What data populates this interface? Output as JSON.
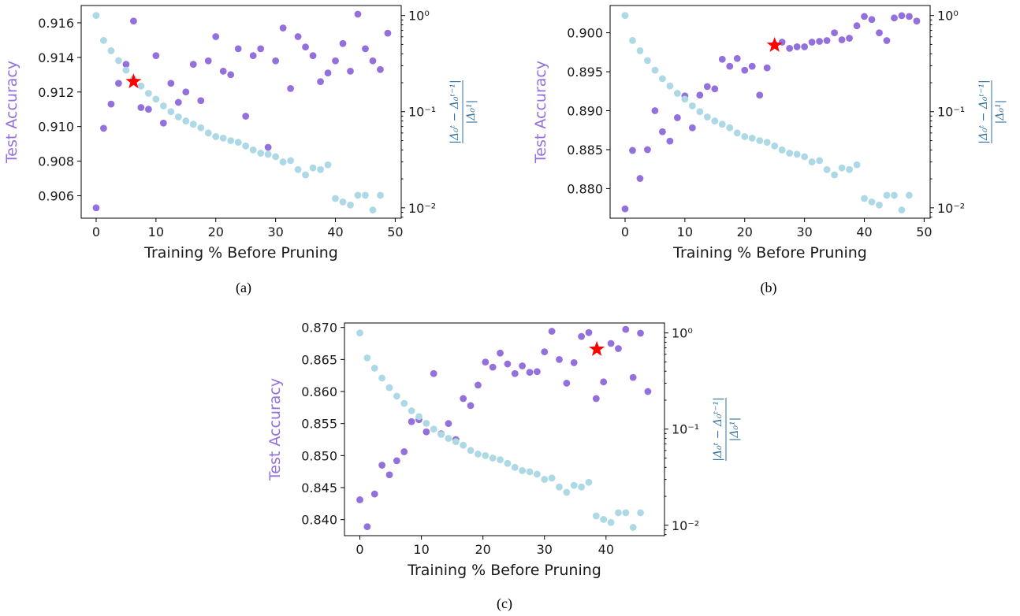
{
  "colors": {
    "accuracy": "#9370db",
    "delta": "#add8e6",
    "right_axis_text": "#2e6f9e",
    "star": "#ff0000"
  },
  "chart_data": [
    {
      "type": "scatter",
      "caption": "(a)",
      "xlabel": "Training % Before Pruning",
      "ylabel": "Test Accuracy",
      "ylabel_right": "|Δ₀ᵗ − Δ₀ᵗ⁻¹| / |Δ₀¹|",
      "xlim": [
        -2.5,
        51
      ],
      "ylim": [
        0.9047,
        0.917
      ],
      "y2lim": [
        0.0078,
        1.27
      ],
      "y2scale": "log",
      "xticks": [
        "0",
        "10",
        "20",
        "30",
        "40",
        "50"
      ],
      "yticks": [
        "0.906",
        "0.908",
        "0.910",
        "0.912",
        "0.914",
        "0.916"
      ],
      "y2ticks": [
        "10⁻²",
        "10⁻¹",
        "10⁰"
      ],
      "grid": false,
      "series": [
        {
          "key": "accuracy",
          "x": [
            0,
            1.25,
            2.5,
            3.75,
            5,
            6.25,
            7.5,
            8.75,
            10,
            11.25,
            12.5,
            13.75,
            15,
            16.25,
            17.5,
            18.75,
            20,
            21.25,
            22.5,
            23.75,
            25,
            26.25,
            27.5,
            28.75,
            30,
            31.25,
            32.5,
            33.75,
            35,
            36.25,
            37.5,
            38.75,
            40,
            41.25,
            42.5,
            43.75,
            45,
            46.25,
            47.5,
            48.75
          ],
          "y": [
            0.9053,
            0.9099,
            0.9113,
            0.9125,
            0.9136,
            0.9161,
            0.9111,
            0.911,
            0.9141,
            0.9102,
            0.9125,
            0.9114,
            0.912,
            0.9136,
            0.9115,
            0.9138,
            0.9152,
            0.9132,
            0.913,
            0.9145,
            0.9106,
            0.9141,
            0.9145,
            0.9088,
            0.9138,
            0.9157,
            0.9122,
            0.9152,
            0.9146,
            0.9141,
            0.9126,
            0.9131,
            0.9138,
            0.9148,
            0.9132,
            0.9165,
            0.9145,
            0.9138,
            0.9133,
            0.9154
          ]
        },
        {
          "key": "delta",
          "x": [
            0,
            1.25,
            2.5,
            3.75,
            5,
            6.25,
            7.5,
            8.75,
            10,
            11.25,
            12.5,
            13.75,
            15,
            16.25,
            17.5,
            18.75,
            20,
            21.25,
            22.5,
            23.75,
            25,
            26.25,
            27.5,
            28.75,
            30,
            31.25,
            32.5,
            33.75,
            35,
            36.25,
            37.5,
            38.75,
            40,
            41.25,
            42.5,
            43.75,
            45,
            46.25,
            47.5
          ],
          "y": [
            1.0,
            0.55,
            0.43,
            0.34,
            0.27,
            0.22,
            0.185,
            0.155,
            0.135,
            0.115,
            0.1,
            0.088,
            0.08,
            0.074,
            0.068,
            0.06,
            0.055,
            0.053,
            0.05,
            0.048,
            0.044,
            0.04,
            0.037,
            0.036,
            0.034,
            0.03,
            0.031,
            0.025,
            0.022,
            0.026,
            0.025,
            0.028,
            0.0125,
            0.0115,
            0.0107,
            0.0135,
            0.0135,
            0.0095,
            0.0135
          ]
        }
      ],
      "star": {
        "x": 6.25,
        "y": 0.9126
      }
    },
    {
      "type": "scatter",
      "caption": "(b)",
      "xlabel": "Training % Before Pruning",
      "ylabel": "Test Accuracy",
      "ylabel_right": "|Δ₀ᵗ − Δ₀ᵗ⁻¹| / |Δ₀¹|",
      "xlim": [
        -2.5,
        51
      ],
      "ylim": [
        0.8762,
        0.9035
      ],
      "y2lim": [
        0.0078,
        1.27
      ],
      "y2scale": "log",
      "xticks": [
        "0",
        "10",
        "20",
        "30",
        "40",
        "50"
      ],
      "yticks": [
        "0.880",
        "0.885",
        "0.890",
        "0.895",
        "0.900"
      ],
      "y2ticks": [
        "10⁻²",
        "10⁻¹",
        "10⁰"
      ],
      "grid": false,
      "series": [
        {
          "key": "accuracy",
          "x": [
            0,
            1.25,
            2.5,
            3.75,
            5,
            6.25,
            7.5,
            8.75,
            10,
            11.25,
            12.5,
            13.75,
            15,
            16.25,
            17.5,
            18.75,
            20,
            21.25,
            22.5,
            23.75,
            25,
            26.25,
            27.5,
            28.75,
            30,
            31.25,
            32.5,
            33.75,
            35,
            36.25,
            37.5,
            38.75,
            40,
            41.25,
            42.5,
            43.75,
            45,
            46.25,
            47.5,
            48.75
          ],
          "y": [
            0.8774,
            0.8849,
            0.8813,
            0.885,
            0.89,
            0.8873,
            0.8861,
            0.8891,
            0.8919,
            0.8878,
            0.892,
            0.8931,
            0.8928,
            0.8966,
            0.8957,
            0.8967,
            0.8952,
            0.8957,
            0.892,
            0.8955,
            0.8985,
            0.8988,
            0.898,
            0.8982,
            0.8982,
            0.8988,
            0.8989,
            0.899,
            0.9,
            0.8991,
            0.8993,
            0.9009,
            0.9021,
            0.9017,
            0.9,
            0.899,
            0.9019,
            0.9022,
            0.9021,
            0.9015
          ]
        },
        {
          "key": "delta",
          "x": [
            0,
            1.25,
            2.5,
            3.75,
            5,
            6.25,
            7.5,
            8.75,
            10,
            11.25,
            12.5,
            13.75,
            15,
            16.25,
            17.5,
            18.75,
            20,
            21.25,
            22.5,
            23.75,
            25,
            26.25,
            27.5,
            28.75,
            30,
            31.25,
            32.5,
            33.75,
            35,
            36.25,
            37.5,
            38.75,
            40,
            41.25,
            42.5,
            43.75,
            45,
            46.25,
            47.5
          ],
          "y": [
            1.0,
            0.55,
            0.43,
            0.34,
            0.27,
            0.22,
            0.185,
            0.155,
            0.135,
            0.115,
            0.1,
            0.088,
            0.08,
            0.074,
            0.068,
            0.06,
            0.055,
            0.053,
            0.05,
            0.048,
            0.044,
            0.04,
            0.037,
            0.036,
            0.034,
            0.03,
            0.031,
            0.025,
            0.022,
            0.026,
            0.025,
            0.028,
            0.0125,
            0.0115,
            0.0107,
            0.0135,
            0.0135,
            0.0095,
            0.0135
          ]
        }
      ],
      "star": {
        "x": 25,
        "y": 0.8984
      }
    },
    {
      "type": "scatter",
      "caption": "(c)",
      "xlabel": "Training % Before Pruning",
      "ylabel": "Test Accuracy",
      "ylabel_right": "|Δ₀ᵗ − Δ₀ᵗ⁻¹| / |Δ₀¹|",
      "xlim": [
        -2.5,
        49.5
      ],
      "ylim": [
        0.8375,
        0.8707
      ],
      "y2lim": [
        0.0078,
        1.27
      ],
      "y2scale": "log",
      "xticks": [
        "0",
        "10",
        "20",
        "30",
        "40"
      ],
      "yticks": [
        "0.840",
        "0.845",
        "0.850",
        "0.855",
        "0.860",
        "0.865",
        "0.870"
      ],
      "y2ticks": [
        "10⁻²",
        "10⁻¹",
        "10⁰"
      ],
      "grid": false,
      "series": [
        {
          "key": "accuracy",
          "x": [
            0,
            1.2,
            2.4,
            3.6,
            4.8,
            6.0,
            7.2,
            8.4,
            9.6,
            10.8,
            12.0,
            13.2,
            14.4,
            15.6,
            16.8,
            18.0,
            19.2,
            20.4,
            21.6,
            22.8,
            24.0,
            25.2,
            26.4,
            27.6,
            28.8,
            30.0,
            31.2,
            32.4,
            33.6,
            34.8,
            36.0,
            37.2,
            38.4,
            39.6,
            40.8,
            42.0,
            43.2,
            44.4,
            45.6,
            46.8
          ],
          "y": [
            0.8431,
            0.8389,
            0.844,
            0.8485,
            0.847,
            0.8492,
            0.8506,
            0.8553,
            0.8556,
            0.8537,
            0.8628,
            0.8534,
            0.855,
            0.8525,
            0.8589,
            0.8578,
            0.861,
            0.8646,
            0.8638,
            0.866,
            0.8643,
            0.8628,
            0.864,
            0.863,
            0.8631,
            0.8662,
            0.8694,
            0.865,
            0.8613,
            0.8645,
            0.8686,
            0.8692,
            0.8589,
            0.8615,
            0.8675,
            0.8667,
            0.8697,
            0.8622,
            0.8691,
            0.86
          ]
        },
        {
          "key": "delta",
          "x": [
            0,
            1.2,
            2.4,
            3.6,
            4.8,
            6.0,
            7.2,
            8.4,
            9.6,
            10.8,
            12.0,
            13.2,
            14.4,
            15.6,
            16.8,
            18.0,
            19.2,
            20.4,
            21.6,
            22.8,
            24.0,
            25.2,
            26.4,
            27.6,
            28.8,
            30.0,
            31.2,
            32.4,
            33.6,
            34.8,
            36.0,
            37.2,
            38.4,
            39.6,
            40.8,
            42.0,
            43.2,
            44.4,
            45.6
          ],
          "y": [
            1.0,
            0.55,
            0.43,
            0.34,
            0.27,
            0.22,
            0.185,
            0.155,
            0.135,
            0.115,
            0.1,
            0.088,
            0.08,
            0.074,
            0.068,
            0.06,
            0.055,
            0.053,
            0.05,
            0.048,
            0.044,
            0.04,
            0.037,
            0.036,
            0.034,
            0.03,
            0.031,
            0.025,
            0.022,
            0.026,
            0.025,
            0.028,
            0.0125,
            0.0115,
            0.0107,
            0.0135,
            0.0135,
            0.0095,
            0.0135
          ]
        }
      ],
      "star": {
        "x": 38.5,
        "y": 0.8666
      }
    }
  ]
}
